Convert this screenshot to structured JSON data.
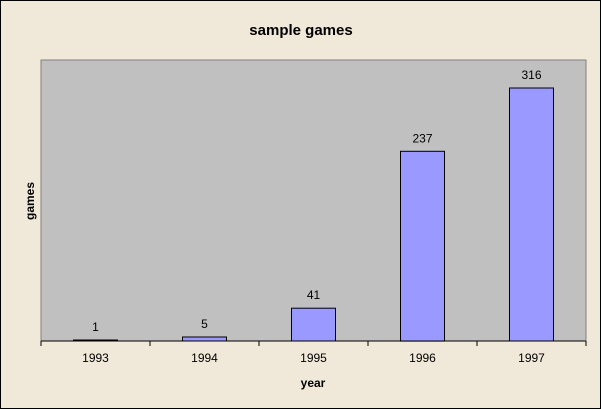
{
  "chart_data": {
    "type": "bar",
    "title": "sample games",
    "xlabel": "year",
    "ylabel": "games",
    "categories": [
      "1993",
      "1994",
      "1995",
      "1996",
      "1997"
    ],
    "values": [
      1,
      5,
      41,
      237,
      316
    ],
    "data_labels": [
      "1",
      "5",
      "41",
      "237",
      "316"
    ],
    "ylim": [
      0,
      350
    ],
    "grid": false,
    "legend": "none",
    "colors": {
      "bar_fill": "#9999ff",
      "bar_stroke": "#000000",
      "plot_background": "#c0c0c0",
      "chart_background": "#f0e8d8"
    }
  }
}
